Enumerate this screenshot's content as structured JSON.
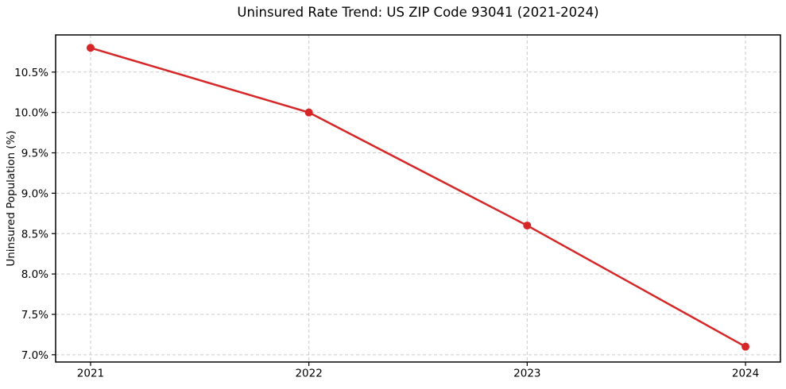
{
  "chart_data": {
    "type": "line",
    "title": "Uninsured Rate Trend: US ZIP Code 93041 (2021-2024)",
    "xlabel": "",
    "ylabel": "Uninsured Population (%)",
    "categories": [
      "2021",
      "2022",
      "2023",
      "2024"
    ],
    "x": [
      2021,
      2022,
      2023,
      2024
    ],
    "values": [
      10.8,
      10.0,
      8.6,
      7.1
    ],
    "y_ticks": [
      7.0,
      7.5,
      8.0,
      8.5,
      9.0,
      9.5,
      10.0,
      10.5
    ],
    "y_tick_labels": [
      "7.0%",
      "7.5%",
      "8.0%",
      "8.5%",
      "9.0%",
      "9.5%",
      "10.0%",
      "10.5%"
    ],
    "xlim": [
      2020.84,
      2024.16
    ],
    "ylim": [
      6.91,
      10.96
    ],
    "grid": true,
    "grid_style": "dashed",
    "legend_position": "none",
    "marker": "circle",
    "colors": {
      "line": "#d62728",
      "marker": "#d62728",
      "grid": "#c9c9c9",
      "axes": "#000000",
      "text": "#000000",
      "background": "#ffffff"
    }
  }
}
